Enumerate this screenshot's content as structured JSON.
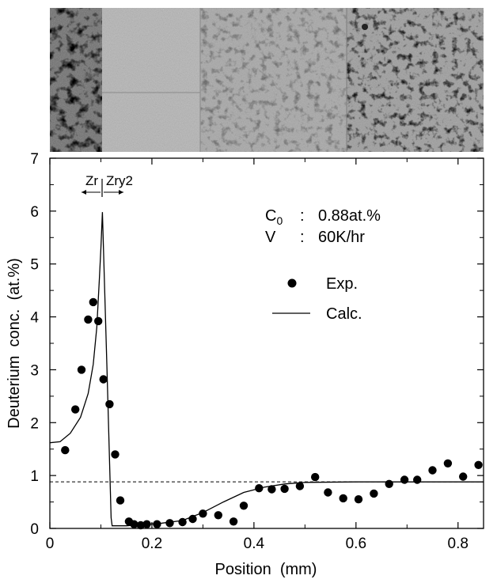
{
  "chart_data": {
    "type": "scatter",
    "xlabel": "Position  (mm)",
    "ylabel": "Deuterium  conc.  (at.%)",
    "xlim": [
      0,
      0.85
    ],
    "ylim": [
      0,
      7
    ],
    "x_ticks": [
      0,
      0.2,
      0.4,
      0.6,
      0.8
    ],
    "x_tick_labels": [
      "0",
      "0.2",
      "0.4",
      "0.6",
      "0.8"
    ],
    "y_ticks": [
      0,
      1,
      2,
      3,
      4,
      5,
      6,
      7
    ],
    "y_tick_labels": [
      "0",
      "1",
      "2",
      "3",
      "4",
      "5",
      "6",
      "7"
    ],
    "reference_line": {
      "y": 0.88,
      "style": "dashed"
    },
    "series": [
      {
        "name": "Exp.",
        "style": "markers",
        "points": [
          [
            0.03,
            1.48
          ],
          [
            0.05,
            2.25
          ],
          [
            0.062,
            3.0
          ],
          [
            0.075,
            3.95
          ],
          [
            0.085,
            4.28
          ],
          [
            0.095,
            3.92
          ],
          [
            0.105,
            2.82
          ],
          [
            0.117,
            2.35
          ],
          [
            0.128,
            1.4
          ],
          [
            0.138,
            0.53
          ],
          [
            0.155,
            0.13
          ],
          [
            0.165,
            0.08
          ],
          [
            0.178,
            0.06
          ],
          [
            0.19,
            0.08
          ],
          [
            0.21,
            0.08
          ],
          [
            0.235,
            0.1
          ],
          [
            0.26,
            0.12
          ],
          [
            0.28,
            0.18
          ],
          [
            0.3,
            0.28
          ],
          [
            0.33,
            0.25
          ],
          [
            0.36,
            0.13
          ],
          [
            0.38,
            0.43
          ],
          [
            0.41,
            0.76
          ],
          [
            0.435,
            0.74
          ],
          [
            0.46,
            0.75
          ],
          [
            0.49,
            0.8
          ],
          [
            0.52,
            0.97
          ],
          [
            0.545,
            0.68
          ],
          [
            0.575,
            0.57
          ],
          [
            0.605,
            0.55
          ],
          [
            0.635,
            0.66
          ],
          [
            0.665,
            0.84
          ],
          [
            0.695,
            0.92
          ],
          [
            0.72,
            0.92
          ],
          [
            0.75,
            1.1
          ],
          [
            0.78,
            1.23
          ],
          [
            0.81,
            0.98
          ],
          [
            0.84,
            1.2
          ]
        ]
      },
      {
        "name": "Calc.",
        "style": "line",
        "points": [
          [
            0,
            1.62
          ],
          [
            0.02,
            1.64
          ],
          [
            0.04,
            1.8
          ],
          [
            0.06,
            2.1
          ],
          [
            0.075,
            2.55
          ],
          [
            0.085,
            3.1
          ],
          [
            0.092,
            3.8
          ],
          [
            0.097,
            4.7
          ],
          [
            0.1,
            5.3
          ],
          [
            0.103,
            5.98
          ],
          [
            0.112,
            3.0
          ],
          [
            0.12,
            0.2
          ],
          [
            0.122,
            0.05
          ],
          [
            0.15,
            0.05
          ],
          [
            0.18,
            0.07
          ],
          [
            0.22,
            0.1
          ],
          [
            0.26,
            0.15
          ],
          [
            0.3,
            0.3
          ],
          [
            0.34,
            0.5
          ],
          [
            0.38,
            0.68
          ],
          [
            0.42,
            0.78
          ],
          [
            0.46,
            0.84
          ],
          [
            0.5,
            0.87
          ],
          [
            0.6,
            0.88
          ],
          [
            0.7,
            0.88
          ],
          [
            0.85,
            0.88
          ]
        ]
      }
    ],
    "annotations": {
      "zr_left": "Zr",
      "zr_right": "Zry2",
      "conditions": [
        {
          "label": "C",
          "sub": "0",
          "sep": ":",
          "value": "0.88at.%"
        },
        {
          "label": "V",
          "sub": "",
          "sep": ":",
          "value": "60K/hr"
        }
      ]
    },
    "legend": {
      "placement": "right-center"
    }
  },
  "image": {
    "description": "grayscale optical micrograph above the plot"
  }
}
